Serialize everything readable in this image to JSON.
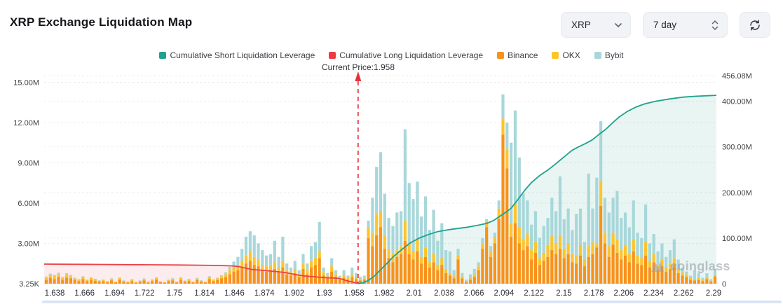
{
  "header": {
    "title": "XRP Exchange Liquidation Map"
  },
  "controls": {
    "symbol_select": {
      "value": "XRP"
    },
    "period_select": {
      "value": "7 day"
    }
  },
  "legend": {
    "items": [
      {
        "label": "Cumulative Short Liquidation Leverage",
        "color": "#1fa18c"
      },
      {
        "label": "Cumulative Long Liquidation Leverage",
        "color": "#ee3b43"
      },
      {
        "label": "Binance",
        "color": "#f8921a"
      },
      {
        "label": "OKX",
        "color": "#fdc42d"
      },
      {
        "label": "Bybit",
        "color": "#a8d7da"
      }
    ]
  },
  "annotation": {
    "current_price_label": "Current Price:1.958",
    "current_price": 1.958
  },
  "watermark": "coinglass",
  "chart_data": {
    "type": "bar",
    "title": "XRP Exchange Liquidation Map",
    "legend_position": "top-center",
    "grid": "dashed-horizontal",
    "bar_value_unit": "M",
    "y_axis_left": {
      "ticks": [
        {
          "label": "15.00M",
          "v": 15
        },
        {
          "label": "12.00M",
          "v": 12
        },
        {
          "label": "9.00M",
          "v": 9
        },
        {
          "label": "6.00M",
          "v": 6
        },
        {
          "label": "3.00M",
          "v": 3
        },
        {
          "label": "3.25K",
          "v": 0
        }
      ]
    },
    "y_axis_right": {
      "ticks": [
        {
          "label": "456.08M",
          "v": 456.08
        },
        {
          "label": "400.00M",
          "v": 400
        },
        {
          "label": "300.00M",
          "v": 300
        },
        {
          "label": "200.00M",
          "v": 200
        },
        {
          "label": "100.00M",
          "v": 100
        },
        {
          "label": "0",
          "v": 0
        }
      ]
    },
    "x_axis": {
      "tick_labels": [
        "1.638",
        "1.666",
        "1.694",
        "1.722",
        "1.75",
        "1.814",
        "1.846",
        "1.874",
        "1.902",
        "1.93",
        "1.958",
        "1.982",
        "2.01",
        "2.038",
        "2.066",
        "2.094",
        "2.122",
        "2.15",
        "2.178",
        "2.206",
        "2.234",
        "2.262",
        "2.29"
      ]
    },
    "series": [
      {
        "name": "Binance",
        "color": "#f8921a",
        "values": [
          0.3,
          0.45,
          0.35,
          0.5,
          0.3,
          0.45,
          0.4,
          0.3,
          0.2,
          0.35,
          0.18,
          0.3,
          0.22,
          0.15,
          0.2,
          0.12,
          0.25,
          0.1,
          0.3,
          0.15,
          0.1,
          0.2,
          0.08,
          0.15,
          0.25,
          0.1,
          0.2,
          0.3,
          0.12,
          0.08,
          0.18,
          0.25,
          0.1,
          0.3,
          0.15,
          0.22,
          0.1,
          0.28,
          0.15,
          0.1,
          0.35,
          0.2,
          0.28,
          0.4,
          0.5,
          0.7,
          0.9,
          1.0,
          1.2,
          1.5,
          1.7,
          1.4,
          1.3,
          1.0,
          0.9,
          1.0,
          1.1,
          0.9,
          1.2,
          0.7,
          0.6,
          0.8,
          0.5,
          1.1,
          0.7,
          1.2,
          1.4,
          1.9,
          0.6,
          0.4,
          0.9,
          0.5,
          0.3,
          0.45,
          0.3,
          0.5,
          0.35,
          0.25,
          0.3,
          3.4,
          2.8,
          3.6,
          4.2,
          2.6,
          1.9,
          1.6,
          2.0,
          2.2,
          3.2,
          2.2,
          1.8,
          2.4,
          1.5,
          2.0,
          1.2,
          1.6,
          1.0,
          1.4,
          0.8,
          0.6,
          0.4,
          1.8,
          0.4,
          0.15,
          0.3,
          0.5,
          1.0,
          2.6,
          4.2,
          2.0,
          3.0,
          4.8,
          11.1,
          8.6,
          3.5,
          4.5,
          3.0,
          2.5,
          2.8,
          1.8,
          2.3,
          1.4,
          1.7,
          2.0,
          2.5,
          2.2,
          2.6,
          1.9,
          2.2,
          1.6,
          1.5,
          2.1,
          1.3,
          2.0,
          2.2,
          2.7,
          5.8,
          3.0,
          2.0,
          2.9,
          2.3,
          1.8,
          2.1,
          1.6,
          2.4,
          1.5,
          1.4,
          2.1,
          1.2,
          1.6,
          1.0,
          1.3,
          0.9,
          1.1,
          1.4,
          0.8,
          0.6,
          0.5,
          0.3,
          0.25,
          0.3,
          0.2,
          0.35,
          0.15,
          0.55
        ]
      },
      {
        "name": "OKX",
        "color": "#fdc42d",
        "values": [
          0.15,
          0.2,
          0.25,
          0.2,
          0.15,
          0.25,
          0.15,
          0.1,
          0.1,
          0.15,
          0.08,
          0.12,
          0.1,
          0.07,
          0.08,
          0.05,
          0.1,
          0.05,
          0.12,
          0.06,
          0.04,
          0.1,
          0.04,
          0.06,
          0.1,
          0.05,
          0.08,
          0.12,
          0.05,
          0.03,
          0.08,
          0.1,
          0.04,
          0.12,
          0.06,
          0.1,
          0.05,
          0.1,
          0.07,
          0.04,
          0.15,
          0.08,
          0.12,
          0.15,
          0.2,
          0.3,
          0.35,
          0.4,
          0.5,
          0.6,
          0.7,
          0.6,
          0.5,
          0.4,
          0.4,
          0.4,
          0.5,
          0.35,
          0.5,
          0.3,
          0.25,
          0.3,
          0.2,
          0.4,
          0.3,
          0.5,
          0.5,
          0.5,
          0.25,
          0.15,
          0.4,
          0.2,
          0.12,
          0.2,
          0.12,
          0.2,
          0.15,
          0.1,
          0.1,
          0.8,
          1.0,
          1.6,
          1.2,
          1.0,
          0.7,
          0.6,
          0.5,
          0.6,
          1.5,
          0.8,
          0.6,
          0.9,
          0.5,
          0.7,
          0.4,
          0.6,
          0.4,
          0.5,
          0.3,
          0.2,
          0.15,
          0.3,
          0.15,
          0.05,
          0.1,
          0.2,
          0.3,
          0.4,
          0.4,
          0.4,
          0.5,
          0.8,
          1.2,
          1.4,
          1.0,
          1.5,
          1.2,
          0.8,
          0.9,
          0.7,
          0.8,
          0.5,
          0.6,
          0.9,
          1.1,
          0.8,
          1.0,
          0.7,
          0.8,
          0.6,
          0.6,
          0.8,
          0.5,
          0.8,
          0.9,
          0.3,
          1.8,
          0.8,
          0.8,
          0.9,
          1.0,
          0.7,
          0.8,
          0.6,
          0.9,
          0.6,
          0.5,
          1.0,
          0.5,
          0.6,
          0.4,
          0.5,
          0.35,
          0.4,
          0.5,
          0.3,
          0.25,
          0.2,
          0.12,
          0.1,
          0.15,
          0.1,
          0.12,
          0.08,
          0.1
        ]
      },
      {
        "name": "Bybit",
        "color": "#a8d7da",
        "values": [
          0.08,
          0.1,
          0.05,
          0.12,
          0.05,
          0.08,
          0.1,
          0.05,
          0.04,
          0.06,
          0.04,
          0.06,
          0.05,
          0.03,
          0.04,
          0.03,
          0.05,
          0.02,
          0.04,
          0.03,
          0.02,
          0.04,
          0.02,
          0.03,
          0.04,
          0.02,
          0.05,
          0.06,
          0.02,
          0.02,
          0.04,
          0.06,
          0.02,
          0.05,
          0.03,
          0.04,
          0.02,
          0.05,
          0.03,
          0.02,
          0.06,
          0.04,
          0.05,
          0.08,
          0.15,
          0.25,
          0.4,
          0.6,
          0.9,
          1.4,
          1.5,
          1.6,
          1.2,
          1.1,
          0.8,
          0.8,
          1.6,
          0.75,
          1.8,
          0.5,
          0.35,
          0.6,
          0.3,
          0.7,
          0.5,
          1.1,
          1.2,
          2.2,
          0.35,
          0.25,
          0.6,
          0.3,
          0.18,
          0.35,
          0.18,
          0.5,
          0.3,
          0.15,
          0.2,
          0.5,
          2.6,
          3.5,
          4.4,
          3.1,
          2.3,
          2.1,
          2.8,
          2.6,
          6.8,
          4.5,
          3.9,
          4.3,
          3.0,
          3.8,
          2.4,
          3.3,
          1.8,
          2.6,
          1.4,
          1.6,
          0.45,
          0.5,
          0.25,
          0.1,
          0.3,
          0.4,
          0.3,
          0.4,
          0.2,
          0.4,
          0.3,
          0.6,
          1.8,
          2.0,
          6.0,
          6.9,
          5.2,
          3.4,
          2.5,
          1.9,
          2.3,
          1.5,
          2.0,
          2.0,
          2.8,
          2.4,
          4.4,
          2.2,
          2.6,
          1.8,
          3.1,
          2.7,
          1.3,
          5.4,
          2.5,
          4.9,
          4.5,
          2.6,
          2.5,
          2.6,
          3.6,
          2.4,
          2.4,
          2.0,
          2.9,
          1.7,
          1.5,
          2.8,
          1.3,
          1.5,
          1.0,
          1.2,
          0.75,
          1.0,
          1.4,
          0.7,
          0.35,
          0.2,
          0.18,
          0.65,
          0.35,
          0.15,
          0.3,
          0.1,
          0.45
        ]
      }
    ],
    "lines": [
      {
        "name": "Cumulative Short Liquidation Leverage",
        "color": "#1fa18c",
        "fill": "rgba(35,160,140,0.10)",
        "axis": "right",
        "points": [
          [
            0.467,
            0.3
          ],
          [
            0.475,
            2
          ],
          [
            0.483,
            8
          ],
          [
            0.49,
            15
          ],
          [
            0.5,
            30
          ],
          [
            0.51,
            45
          ],
          [
            0.52,
            60
          ],
          [
            0.532,
            75
          ],
          [
            0.545,
            90
          ],
          [
            0.558,
            100
          ],
          [
            0.572,
            108
          ],
          [
            0.585,
            114
          ],
          [
            0.6,
            118
          ],
          [
            0.615,
            121
          ],
          [
            0.63,
            124
          ],
          [
            0.645,
            128
          ],
          [
            0.658,
            132
          ],
          [
            0.668,
            138
          ],
          [
            0.678,
            148
          ],
          [
            0.688,
            158
          ],
          [
            0.695,
            166
          ],
          [
            0.705,
            185
          ],
          [
            0.715,
            205
          ],
          [
            0.725,
            222
          ],
          [
            0.738,
            238
          ],
          [
            0.75,
            250
          ],
          [
            0.762,
            264
          ],
          [
            0.775,
            280
          ],
          [
            0.785,
            292
          ],
          [
            0.795,
            300
          ],
          [
            0.805,
            307
          ],
          [
            0.815,
            315
          ],
          [
            0.825,
            327
          ],
          [
            0.835,
            338
          ],
          [
            0.845,
            352
          ],
          [
            0.855,
            365
          ],
          [
            0.868,
            378
          ],
          [
            0.88,
            387
          ],
          [
            0.893,
            394
          ],
          [
            0.91,
            400
          ],
          [
            0.93,
            405
          ],
          [
            0.95,
            409
          ],
          [
            0.97,
            411
          ],
          [
            1.0,
            413
          ]
        ]
      },
      {
        "name": "Cumulative Long Liquidation Leverage",
        "color": "#e8414b",
        "fill": "rgba(238,70,80,0.10)",
        "axis": "right",
        "points": [
          [
            0.0,
            43
          ],
          [
            0.04,
            42.6
          ],
          [
            0.08,
            42.2
          ],
          [
            0.12,
            41.8
          ],
          [
            0.16,
            41.4
          ],
          [
            0.2,
            41
          ],
          [
            0.23,
            40.5
          ],
          [
            0.26,
            40
          ],
          [
            0.28,
            39
          ],
          [
            0.29,
            37.5
          ],
          [
            0.3,
            34
          ],
          [
            0.31,
            31
          ],
          [
            0.32,
            30
          ],
          [
            0.335,
            28
          ],
          [
            0.35,
            26
          ],
          [
            0.36,
            24
          ],
          [
            0.37,
            21
          ],
          [
            0.38,
            18.5
          ],
          [
            0.39,
            16.5
          ],
          [
            0.4,
            15.5
          ],
          [
            0.41,
            14
          ],
          [
            0.42,
            13
          ],
          [
            0.43,
            12.5
          ],
          [
            0.437,
            12
          ],
          [
            0.443,
            10
          ],
          [
            0.449,
            7
          ],
          [
            0.454,
            5
          ],
          [
            0.459,
            3.5
          ],
          [
            0.463,
            2
          ],
          [
            0.467,
            1
          ]
        ]
      }
    ],
    "current_price_x_frac": 0.467,
    "current_price_line_color": "#e8303a"
  }
}
